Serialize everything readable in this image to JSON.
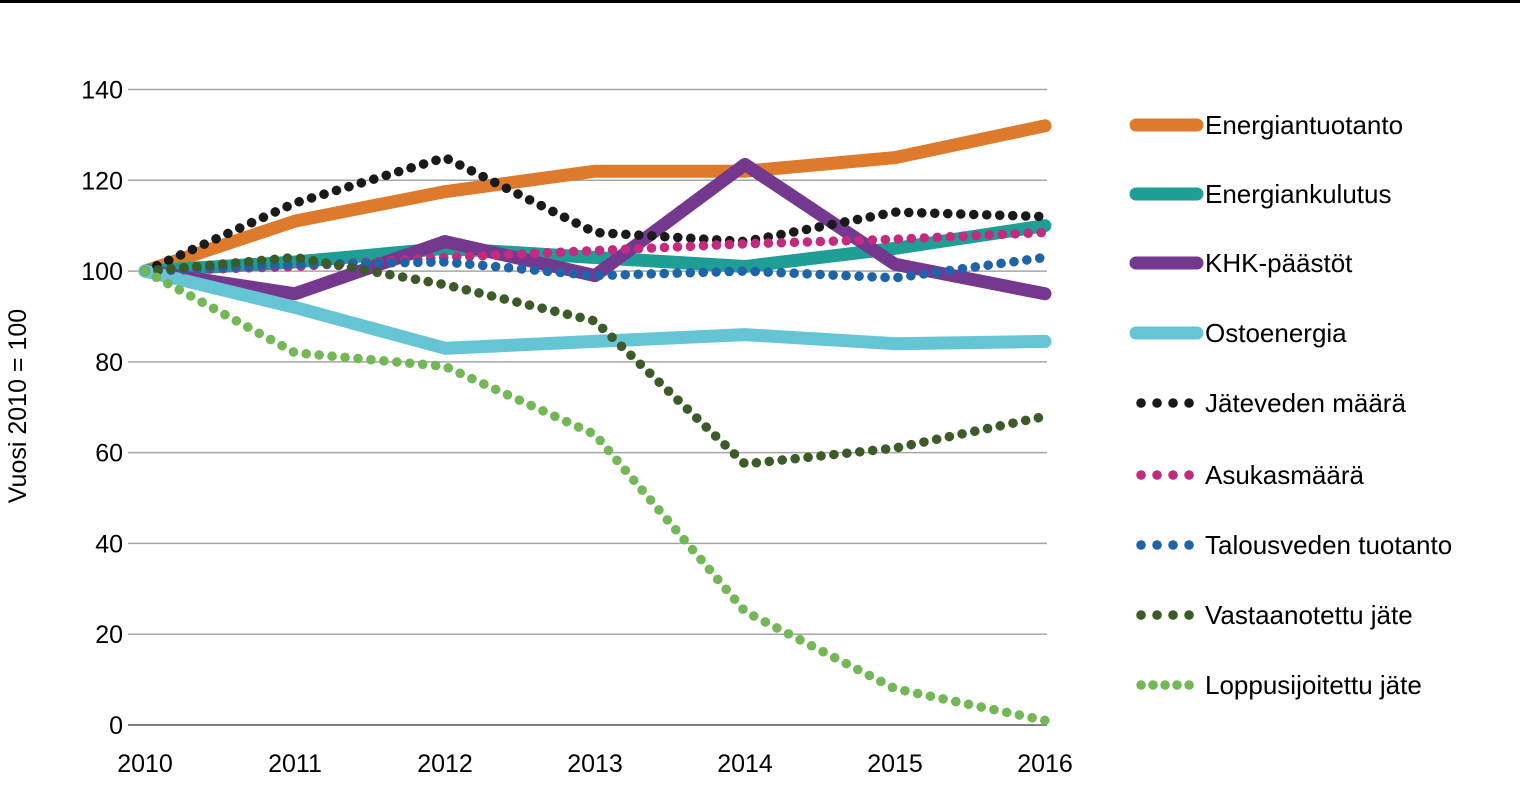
{
  "chart_data": {
    "type": "line",
    "title": "",
    "xlabel": "",
    "ylabel": "Vuosi 2010 = 100",
    "x": [
      2010,
      2011,
      2012,
      2013,
      2014,
      2015,
      2016
    ],
    "xtick_labels": [
      "2010",
      "2011",
      "2012",
      "2013",
      "2014",
      "2015",
      "2016"
    ],
    "ylim": [
      0,
      140
    ],
    "yticks": [
      0,
      20,
      40,
      60,
      80,
      100,
      120,
      140
    ],
    "grid": true,
    "gridline_color": "#A6A6A6",
    "axis_color": "#7F7F7F",
    "background_color": "#FFFFFF",
    "legend_position": "right",
    "series": [
      {
        "name": "Energiantuotanto",
        "color": "#DD7A2B",
        "style": "solid",
        "legend_dots": 0,
        "values": [
          100,
          111,
          117.5,
          122,
          122,
          125,
          132
        ]
      },
      {
        "name": "Energiankulutus",
        "color": "#1E9E94",
        "style": "solid",
        "legend_dots": 0,
        "values": [
          100,
          102,
          105,
          103,
          101,
          105,
          110
        ]
      },
      {
        "name": "KHK-päästöt",
        "color": "#74388E",
        "style": "solid",
        "legend_dots": 0,
        "values": [
          100,
          95,
          106.5,
          99,
          123.5,
          101.5,
          95
        ]
      },
      {
        "name": "Ostoenergia",
        "color": "#66C5D4",
        "style": "solid",
        "legend_dots": 0,
        "values": [
          100,
          92,
          83,
          84.5,
          86,
          84,
          84.5
        ]
      },
      {
        "name": "Jäteveden määrä",
        "color": "#1A1A1A",
        "style": "dotted",
        "legend_dots": 4,
        "values": [
          100,
          115,
          125,
          108.5,
          106.5,
          113,
          112
        ]
      },
      {
        "name": "Asukasmäärä",
        "color": "#C42A80",
        "style": "dotted",
        "legend_dots": 4,
        "values": [
          100,
          101,
          103,
          104.5,
          106,
          107,
          108.5
        ]
      },
      {
        "name": "Talousveden tuotanto",
        "color": "#1F63A8",
        "style": "dotted",
        "legend_dots": 4,
        "values": [
          100,
          101.5,
          102,
          99,
          100,
          98.5,
          103
        ]
      },
      {
        "name": "Vastaanotettu jäte",
        "color": "#3C5B28",
        "style": "dotted",
        "legend_dots": 4,
        "values": [
          100,
          103,
          97,
          89,
          57.5,
          61,
          68
        ]
      },
      {
        "name": "Loppusijoitettu jäte",
        "color": "#74B757",
        "style": "dotted",
        "legend_dots": 5,
        "values": [
          100,
          82,
          79,
          64,
          25,
          8,
          1
        ]
      }
    ]
  }
}
